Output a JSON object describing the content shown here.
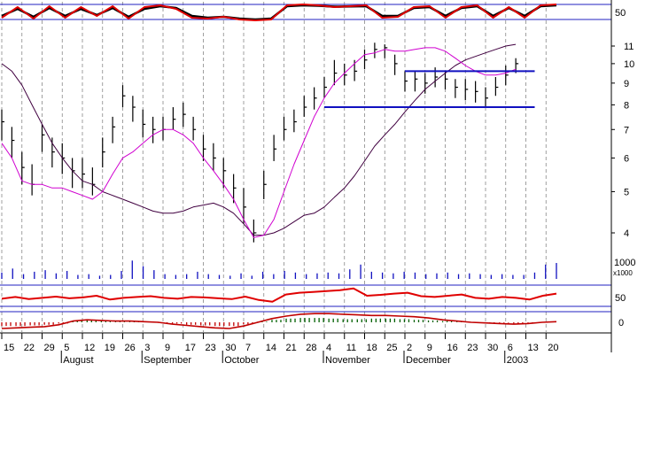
{
  "chart_data": {
    "type": "bar",
    "scale": "log",
    "price_axis": {
      "ticks": [
        4,
        5,
        6,
        7,
        8,
        9,
        10,
        11
      ]
    },
    "volume_axis": {
      "tick_label": "1000",
      "unit_label": "x1000"
    },
    "indicator_axes": {
      "stochastic_tick": "50",
      "rsi_tick": "50",
      "macd_tick": "0"
    },
    "x_axis": {
      "day_ticks": [
        "15",
        "22",
        "29",
        "5",
        "12",
        "19",
        "26",
        "3",
        "9",
        "17",
        "23",
        "30",
        "7",
        "14",
        "21",
        "28",
        "4",
        "11",
        "18",
        "25",
        "2",
        "9",
        "16",
        "23",
        "30",
        "6",
        "13",
        "20"
      ],
      "months": [
        {
          "label": "August",
          "tick_index": 3
        },
        {
          "label": "September",
          "tick_index": 7
        },
        {
          "label": "October",
          "tick_index": 11
        },
        {
          "label": "November",
          "tick_index": 16
        },
        {
          "label": "December",
          "tick_index": 20
        },
        {
          "label": "2003",
          "tick_index": 25
        }
      ]
    },
    "price_series": {
      "week_index": [
        0,
        0.5,
        1,
        1.5,
        2,
        2.5,
        3,
        3.5,
        4,
        4.5,
        5,
        5.5,
        6,
        6.5,
        7,
        7.5,
        8,
        8.5,
        9,
        9.5,
        10,
        10.5,
        11,
        11.5,
        12,
        12.5,
        13,
        13.5,
        14,
        14.5,
        15,
        15.5,
        16,
        16.5,
        17,
        17.5,
        18,
        18.5,
        19,
        19.5,
        20,
        20.5,
        21,
        21.5,
        22,
        22.5,
        23,
        23.5,
        24,
        24.5,
        25,
        25.5
      ],
      "close": [
        7.3,
        6.6,
        5.7,
        5.2,
        6.8,
        6.2,
        6.0,
        5.6,
        5.5,
        5.2,
        6.2,
        7.1,
        8.4,
        7.9,
        7.2,
        7.0,
        7.0,
        7.4,
        7.6,
        7.0,
        6.3,
        6.0,
        5.6,
        5.1,
        4.6,
        4.0,
        5.2,
        6.3,
        7.0,
        7.3,
        7.9,
        8.3,
        8.8,
        9.5,
        9.4,
        9.6,
        10.2,
        10.8,
        10.9,
        10.0,
        9.1,
        9.2,
        9.0,
        9.3,
        9.2,
        8.8,
        8.7,
        8.6,
        8.3,
        8.8,
        9.4,
        10.0
      ],
      "high": [
        7.8,
        7.1,
        6.2,
        5.8,
        7.2,
        6.7,
        6.5,
        6.0,
        6.0,
        5.7,
        6.7,
        7.5,
        8.9,
        8.4,
        7.8,
        7.5,
        7.5,
        7.9,
        8.1,
        7.5,
        6.8,
        6.5,
        6.0,
        5.5,
        5.1,
        4.3,
        5.6,
        6.8,
        7.5,
        7.8,
        8.4,
        8.8,
        9.3,
        10.2,
        10.0,
        10.2,
        10.8,
        11.2,
        11.1,
        10.5,
        9.6,
        9.6,
        9.5,
        9.8,
        9.6,
        9.2,
        9.2,
        9.1,
        8.8,
        9.3,
        9.9,
        10.3
      ],
      "low": [
        6.6,
        6.0,
        5.2,
        4.9,
        6.2,
        5.7,
        5.5,
        5.1,
        5.1,
        4.9,
        5.7,
        6.5,
        7.9,
        7.3,
        6.7,
        6.5,
        6.6,
        7.0,
        7.1,
        6.6,
        5.9,
        5.6,
        5.1,
        4.7,
        4.2,
        3.8,
        4.8,
        5.9,
        6.6,
        6.9,
        7.5,
        7.8,
        8.3,
        8.9,
        8.9,
        9.1,
        9.7,
        10.3,
        10.3,
        9.4,
        8.6,
        8.6,
        8.5,
        8.8,
        8.7,
        8.3,
        8.2,
        8.1,
        7.9,
        8.4,
        8.9,
        9.5
      ],
      "ma_fast": [
        6.5,
        6.0,
        5.3,
        5.2,
        5.2,
        5.1,
        5.1,
        5.0,
        4.9,
        4.8,
        5.0,
        5.5,
        6.0,
        6.2,
        6.5,
        6.8,
        7.0,
        7.0,
        6.8,
        6.5,
        6.0,
        5.6,
        5.2,
        4.8,
        4.3,
        3.9,
        3.95,
        4.3,
        5.0,
        5.8,
        6.6,
        7.5,
        8.3,
        9.0,
        9.5,
        10.0,
        10.5,
        10.6,
        10.8,
        10.7,
        10.7,
        10.8,
        10.9,
        10.9,
        10.7,
        10.3,
        9.9,
        9.6,
        9.4,
        9.4,
        9.5,
        9.7
      ],
      "ma_slow": [
        10.0,
        9.6,
        8.9,
        8.0,
        7.2,
        6.5,
        6.0,
        5.6,
        5.3,
        5.2,
        5.0,
        4.9,
        4.8,
        4.7,
        4.6,
        4.5,
        4.45,
        4.45,
        4.5,
        4.6,
        4.65,
        4.7,
        4.6,
        4.45,
        4.2,
        3.95,
        3.95,
        4.0,
        4.1,
        4.25,
        4.4,
        4.45,
        4.6,
        4.85,
        5.1,
        5.45,
        5.9,
        6.4,
        6.8,
        7.2,
        7.7,
        8.2,
        8.7,
        9.1,
        9.5,
        9.9,
        10.2,
        10.4,
        10.6,
        10.8,
        11.0,
        11.1
      ]
    },
    "levels": [
      {
        "value": 7.9,
        "from_week": 16,
        "to_week": 26
      },
      {
        "value": 9.6,
        "from_week": 20,
        "to_week": 26
      }
    ],
    "volume": [
      0.8,
      1.3,
      0.6,
      0.9,
      1.1,
      0.7,
      1.0,
      0.5,
      0.6,
      0.4,
      0.5,
      1.0,
      2.3,
      1.6,
      1.1,
      0.6,
      0.5,
      0.6,
      0.9,
      0.6,
      0.5,
      0.4,
      0.7,
      0.4,
      0.9,
      0.6,
      1.0,
      0.8,
      0.6,
      0.7,
      0.8,
      0.7,
      1.2,
      1.8,
      0.9,
      0.8,
      0.7,
      0.9,
      0.8,
      0.6,
      0.7,
      0.8,
      0.6,
      0.7,
      0.6,
      0.5,
      0.6,
      0.5,
      0.5,
      0.8,
      1.8,
      2.0
    ],
    "stochastic": {
      "k": [
        20,
        80,
        15,
        85,
        20,
        80,
        30,
        85,
        15,
        80,
        90,
        70,
        20,
        15,
        25,
        10,
        5,
        10,
        90,
        95,
        90,
        80,
        85,
        90,
        20,
        25,
        80,
        85,
        20,
        80,
        90,
        20,
        80,
        20,
        90,
        95
      ],
      "d": [
        30,
        70,
        25,
        75,
        30,
        70,
        35,
        75,
        25,
        70,
        85,
        75,
        30,
        20,
        25,
        15,
        10,
        15,
        85,
        90,
        88,
        82,
        84,
        85,
        30,
        30,
        75,
        80,
        30,
        75,
        85,
        30,
        75,
        30,
        85,
        90
      ]
    },
    "rsi": [
      48,
      52,
      47,
      50,
      53,
      49,
      51,
      55,
      46,
      50,
      52,
      54,
      50,
      48,
      52,
      51,
      49,
      47,
      53,
      45,
      41,
      58,
      62,
      64,
      66,
      68,
      72,
      55,
      57,
      60,
      62,
      54,
      52,
      55,
      58,
      50,
      48,
      52,
      50,
      46,
      55,
      60
    ],
    "macd": {
      "line": [
        -0.5,
        -0.45,
        -0.4,
        -0.35,
        -0.2,
        0.1,
        0.2,
        0.15,
        0.1,
        0.1,
        0.05,
        0.0,
        -0.15,
        -0.25,
        -0.35,
        -0.45,
        -0.5,
        -0.3,
        0.0,
        0.3,
        0.5,
        0.65,
        0.7,
        0.7,
        0.65,
        0.6,
        0.55,
        0.55,
        0.5,
        0.45,
        0.35,
        0.2,
        0.1,
        0.0,
        -0.05,
        -0.1,
        -0.15,
        -0.1,
        0.0,
        0.05
      ],
      "histogram": [
        -0.3,
        -0.3,
        -0.25,
        -0.2,
        -0.1,
        0.1,
        0.15,
        0.1,
        0.05,
        0.05,
        0.0,
        -0.05,
        -0.1,
        -0.2,
        -0.25,
        -0.3,
        -0.3,
        -0.15,
        0.05,
        0.2,
        0.3,
        0.35,
        0.35,
        0.3,
        0.25,
        0.25,
        0.3,
        0.3,
        0.25,
        0.2,
        0.15,
        0.1,
        0.05,
        0.0,
        -0.05,
        -0.05,
        -0.1,
        -0.05,
        0.0,
        0.0
      ]
    },
    "colors": {
      "bars": "#000000",
      "ma_fast": "#d000d0",
      "ma_slow": "#400040",
      "levels": "#1010c0",
      "oscillator_primary": "#e00000",
      "oscillator_secondary": "#000000",
      "macd_pos": "#006000",
      "macd_neg": "#c00000",
      "grid": "#888888"
    },
    "grid": true
  }
}
